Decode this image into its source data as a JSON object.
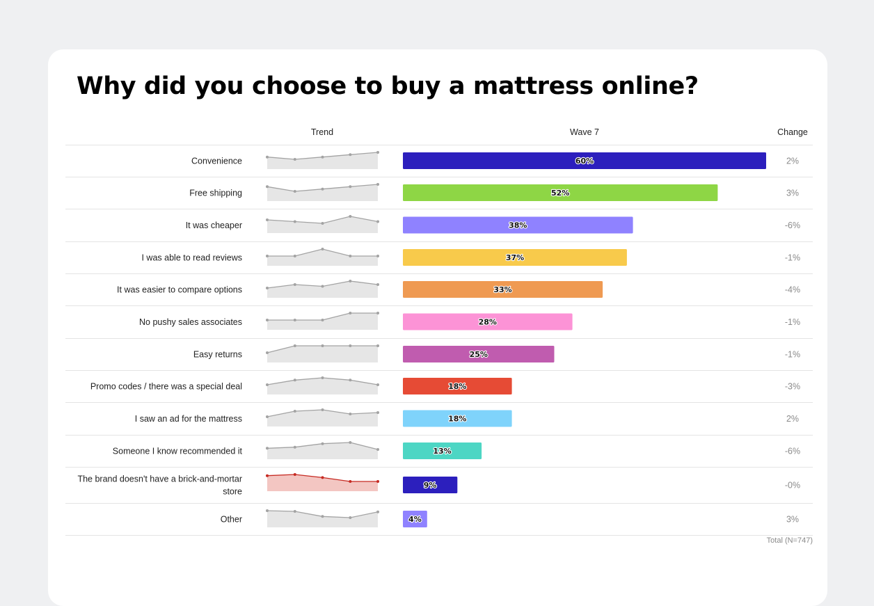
{
  "title": "Why did you choose to buy a mattress online?",
  "headers": {
    "trend": "Trend",
    "wave": "Wave 7",
    "change": "Change"
  },
  "footer": "Total (N=747)",
  "chart_data": {
    "type": "bar",
    "orientation": "horizontal",
    "title": "Why did you choose to buy a mattress online?",
    "series_name": "Wave 7",
    "unit": "%",
    "xlim": [
      0,
      60
    ],
    "rows": [
      {
        "label": "Convenience",
        "value": 60,
        "value_label": "60%",
        "change": "2%",
        "color": "#2c1fbd",
        "trend": [
          58,
          57,
          58,
          59,
          60
        ]
      },
      {
        "label": "Free shipping",
        "value": 52,
        "value_label": "52%",
        "change": "3%",
        "color": "#8ed645",
        "trend": [
          50,
          48,
          49,
          50,
          51
        ]
      },
      {
        "label": "It was cheaper",
        "value": 38,
        "value_label": "38%",
        "change": "-6%",
        "color": "#8f82ff",
        "trend": [
          42,
          41,
          40,
          44,
          41
        ]
      },
      {
        "label": "I was able to read reviews",
        "value": 37,
        "value_label": "37%",
        "change": "-1%",
        "color": "#f8ca4b",
        "trend": [
          38,
          38,
          39,
          38,
          38
        ]
      },
      {
        "label": "It was easier to compare options",
        "value": 33,
        "value_label": "33%",
        "change": "-4%",
        "color": "#ef9a52",
        "trend": [
          34,
          36,
          35,
          38,
          36
        ]
      },
      {
        "label": "No pushy sales associates",
        "value": 28,
        "value_label": "28%",
        "change": "-1%",
        "color": "#fc93d6",
        "trend": [
          28,
          28,
          28,
          33,
          33
        ]
      },
      {
        "label": "Easy returns",
        "value": 25,
        "value_label": "25%",
        "change": "-1%",
        "color": "#c05caf",
        "trend": [
          20,
          26,
          26,
          26,
          26
        ]
      },
      {
        "label": "Promo codes / there was a special deal",
        "value": 18,
        "value_label": "18%",
        "change": "-3%",
        "color": "#e64b35",
        "trend": [
          18,
          20,
          21,
          20,
          18
        ]
      },
      {
        "label": "I saw an ad for the mattress",
        "value": 18,
        "value_label": "18%",
        "change": "2%",
        "color": "#7fd3fb",
        "trend": [
          14,
          18,
          19,
          16,
          17
        ]
      },
      {
        "label": "Someone I know recommended it",
        "value": 13,
        "value_label": "13%",
        "change": "-6%",
        "color": "#4dd6c4",
        "trend": [
          14,
          15,
          18,
          19,
          13
        ]
      },
      {
        "label": "The brand doesn't have a brick-and-mortar store",
        "value": 9,
        "value_label": "9%",
        "change": "-0%",
        "color": "#2c1fbd",
        "trend": [
          10,
          10.3,
          9.5,
          8.5,
          8.5
        ],
        "trend_highlight": true
      },
      {
        "label": "Other",
        "value": 4,
        "value_label": "4%",
        "change": "3%",
        "color": "#8f82ff",
        "trend": [
          4,
          3.7,
          1.5,
          1,
          3.5
        ]
      }
    ]
  }
}
